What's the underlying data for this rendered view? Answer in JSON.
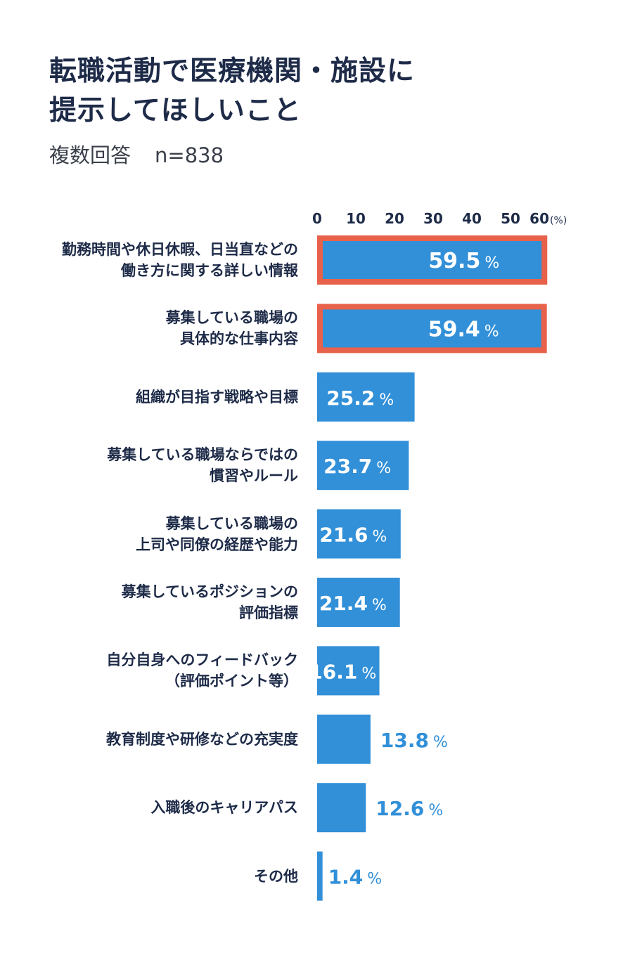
{
  "title": {
    "line1": "転職活動で医療機関・施設に",
    "line2": "提示してほしいこと"
  },
  "subtitle": {
    "text": "複数回答",
    "n": "n=838"
  },
  "chart_data": {
    "type": "bar",
    "orientation": "horizontal",
    "x_ticks": [
      "0",
      "10",
      "20",
      "30",
      "40",
      "50",
      "60"
    ],
    "x_unit": "(%)",
    "xlim": [
      0,
      60
    ],
    "value_suffix": "%",
    "categories": [
      [
        "勤務時間や休日休暇、日当直などの",
        "働き方に関する詳しい情報"
      ],
      [
        "募集している職場の",
        "具体的な仕事内容"
      ],
      [
        "組織が目指す戦略や目標"
      ],
      [
        "募集している職場ならではの",
        "慣習やルール"
      ],
      [
        "募集している職場の",
        "上司や同僚の経歴や能力"
      ],
      [
        "募集しているポジションの",
        "評価指標"
      ],
      [
        "自分自身へのフィードバック",
        "（評価ポイント等）"
      ],
      [
        "教育制度や研修などの充実度"
      ],
      [
        "入職後のキャリアパス"
      ],
      [
        "その他"
      ]
    ],
    "values": [
      59.5,
      59.4,
      25.2,
      23.7,
      21.6,
      21.4,
      16.1,
      13.8,
      12.6,
      1.4
    ],
    "value_labels": [
      "59.5",
      "59.4",
      "25.2",
      "23.7",
      "21.6",
      "21.4",
      "16.1",
      "13.8",
      "12.6",
      "1.4"
    ],
    "highlighted": [
      true,
      true,
      false,
      false,
      false,
      false,
      false,
      false,
      false,
      false
    ],
    "grid": false,
    "colors": {
      "bar": "#3290d8",
      "highlight_border": "#e8614a",
      "label_inside": "#ffffff",
      "label_outside": "#3290d8",
      "text": "#1e2b48"
    }
  }
}
